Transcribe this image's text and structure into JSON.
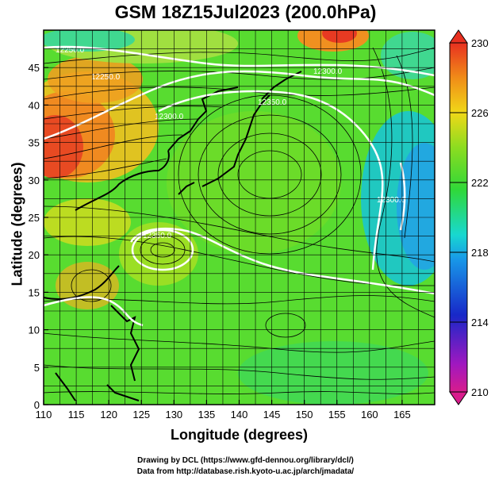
{
  "title": "GSM 18Z15Jul2023 (200.0hPa)",
  "x_axis": {
    "label": "Longitude (degrees)",
    "range": [
      110,
      170
    ],
    "ticks": [
      "110",
      "115",
      "120",
      "125",
      "130",
      "135",
      "140",
      "145",
      "150",
      "155",
      "160",
      "165"
    ]
  },
  "y_axis": {
    "label": "Latitude (degrees)",
    "range": [
      0,
      50
    ],
    "ticks": [
      "0",
      "5",
      "10",
      "15",
      "20",
      "25",
      "30",
      "35",
      "40",
      "45"
    ]
  },
  "colorbar": {
    "range": [
      210,
      230
    ],
    "ticks": [
      "230",
      "226",
      "222",
      "218",
      "214",
      "210"
    ],
    "colors": [
      "#d81c8c",
      "#9018c8",
      "#1828c8",
      "#1898e8",
      "#18d8d0",
      "#30d838",
      "#8cdc20",
      "#f0d818",
      "#f08c18",
      "#e83020"
    ]
  },
  "contours": {
    "labels": [
      "12250.0",
      "12300.0",
      "12350.0",
      "12350.0",
      "12300.0",
      "12300.0",
      "12250.0"
    ]
  },
  "credits": {
    "line1": "Drawing by DCL (https://www.gfd-dennou.org/library/dcl/)",
    "line2": "Data from http://database.rish.kyoto-u.ac.jp/arch/jmadata/"
  }
}
